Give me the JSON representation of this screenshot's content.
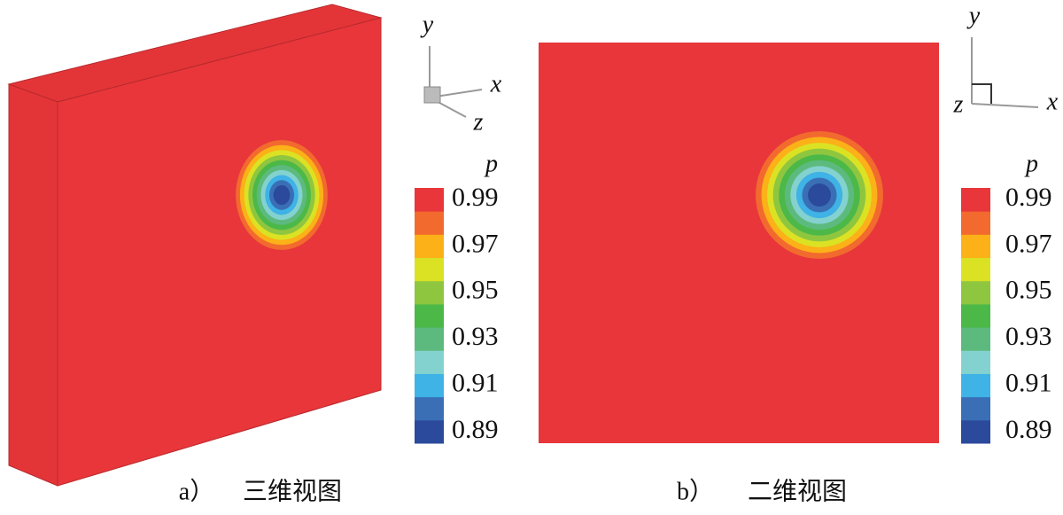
{
  "chart_data": [
    {
      "type": "contour",
      "label": "a）",
      "title": "三维视图",
      "view": "3d",
      "colorbar_label": "p",
      "axis_labels": {
        "x": "x",
        "y": "y",
        "z": "z"
      },
      "levels": [
        0.89,
        0.9,
        0.91,
        0.92,
        0.93,
        0.94,
        0.95,
        0.96,
        0.97,
        0.98,
        0.99
      ],
      "colors": [
        "#2b4a9c",
        "#3a6fb5",
        "#3fb2e6",
        "#84d2cf",
        "#5dba7e",
        "#4cb848",
        "#8fc640",
        "#dbe224",
        "#fbb117",
        "#f26a2e",
        "#e8363a"
      ],
      "ylim": [
        0.885,
        0.995
      ],
      "yticks": [
        0.89,
        0.91,
        0.93,
        0.95,
        0.97,
        0.99
      ]
    },
    {
      "type": "contour",
      "label": "b）",
      "title": "二维视图",
      "view": "2d",
      "colorbar_label": "p",
      "axis_labels": {
        "x": "x",
        "y": "y",
        "z": "z"
      },
      "levels": [
        0.89,
        0.9,
        0.91,
        0.92,
        0.93,
        0.94,
        0.95,
        0.96,
        0.97,
        0.98,
        0.99
      ],
      "colors": [
        "#2b4a9c",
        "#3a6fb5",
        "#3fb2e6",
        "#84d2cf",
        "#5dba7e",
        "#4cb848",
        "#8fc640",
        "#dbe224",
        "#fbb117",
        "#f26a2e",
        "#e8363a"
      ],
      "ylim": [
        0.885,
        0.995
      ],
      "yticks": [
        0.89,
        0.91,
        0.93,
        0.95,
        0.97,
        0.99
      ]
    }
  ]
}
